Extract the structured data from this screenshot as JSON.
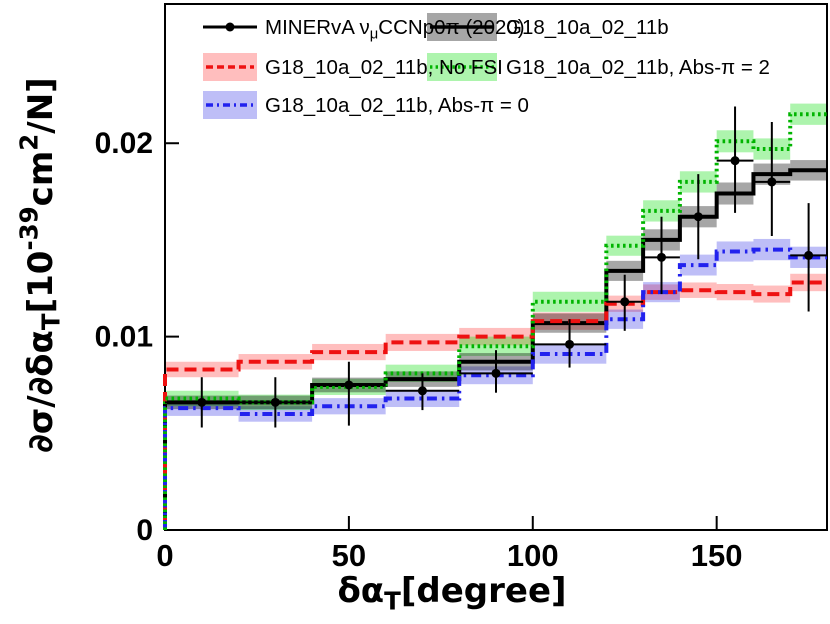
{
  "chart_data": {
    "type": "step-histogram-with-errorbars",
    "title": "",
    "xlabel_parts": [
      {
        "t": "δα"
      },
      {
        "t": "T",
        "sub": true
      },
      {
        "t": "[degree]"
      }
    ],
    "ylabel_parts": [
      {
        "t": "∂σ/∂δα"
      },
      {
        "t": "T",
        "sub": true
      },
      {
        "t": "[10"
      },
      {
        "t": "-39",
        "sup": true
      },
      {
        "t": "cm"
      },
      {
        "t": "2",
        "sup": true
      },
      {
        "t": "/N]"
      }
    ],
    "xlim": [
      0,
      180
    ],
    "ylim": [
      0,
      0.0272
    ],
    "x_ticks": [
      {
        "value": 0,
        "label": "0"
      },
      {
        "value": 50,
        "label": "50"
      },
      {
        "value": 100,
        "label": "100"
      },
      {
        "value": 150,
        "label": "150"
      }
    ],
    "y_ticks": [
      {
        "value": 0,
        "label": "0"
      },
      {
        "value": 0.01,
        "label": "0.01"
      },
      {
        "value": 0.02,
        "label": "0.02"
      }
    ],
    "grid": false,
    "bin_edges": [
      0,
      20,
      40,
      60,
      80,
      100,
      120,
      130,
      140,
      150,
      160,
      170,
      180
    ],
    "series": [
      {
        "key": "g18",
        "name": "G18_10a_02_11b",
        "line_color": "#000000",
        "band_color": "rgba(0,0,0,0.35)",
        "dash": "solid",
        "values": [
          0.0066,
          0.0066,
          0.0075,
          0.0078,
          0.0087,
          0.0107,
          0.0134,
          0.015,
          0.0162,
          0.0174,
          0.0184,
          0.0186
        ],
        "band_halfwidth": [
          0.00035,
          0.00035,
          0.00038,
          0.0004,
          0.00045,
          0.0005,
          0.00052,
          0.00055,
          0.00055,
          0.00057,
          0.00055,
          0.00053
        ]
      },
      {
        "key": "g18_nofsi",
        "name": "G18_10a_02_11b, No FSI",
        "line_color": "#ee1111",
        "band_color": "rgba(255,40,40,0.30)",
        "dash": "dashed",
        "values": [
          0.0083,
          0.0087,
          0.0092,
          0.0097,
          0.01,
          0.0108,
          0.0117,
          0.0123,
          0.0124,
          0.0123,
          0.0122,
          0.0128
        ],
        "band_halfwidth": [
          0.0004,
          0.0004,
          0.00042,
          0.00044,
          0.00045,
          0.00045,
          0.00042,
          0.0004,
          0.0004,
          0.00042,
          0.00044,
          0.00045
        ]
      },
      {
        "key": "g18_abspi2",
        "name": "G18_10a_02_11b, Abs-π = 2",
        "line_color": "#00b400",
        "band_color": "rgba(0,220,0,0.32)",
        "dash": "dotted",
        "values": [
          0.0068,
          0.0066,
          0.0074,
          0.0081,
          0.0095,
          0.0118,
          0.0147,
          0.0165,
          0.018,
          0.0201,
          0.0197,
          0.0215
        ],
        "band_halfwidth": [
          0.0004,
          0.0004,
          0.00042,
          0.00045,
          0.0005,
          0.00052,
          0.00052,
          0.00055,
          0.00055,
          0.00057,
          0.00055,
          0.00055
        ]
      },
      {
        "key": "g18_abspi0",
        "name": "G18_10a_02_11b, Abs-π = 0",
        "line_color": "#2222ee",
        "band_color": "rgba(40,40,230,0.30)",
        "dash": "dashdot",
        "values": [
          0.0063,
          0.006,
          0.0064,
          0.0068,
          0.008,
          0.0091,
          0.0109,
          0.0123,
          0.0137,
          0.0144,
          0.0145,
          0.0141
        ],
        "band_halfwidth": [
          0.0004,
          0.0004,
          0.00042,
          0.00044,
          0.00046,
          0.0005,
          0.0005,
          0.00052,
          0.00054,
          0.00052,
          0.00055,
          0.00055
        ]
      }
    ],
    "data_series": {
      "name_parts": [
        {
          "t": "MINERvA ν"
        },
        {
          "t": "μ",
          "sub": true
        },
        {
          "t": "CCNp0π (2020)"
        }
      ],
      "marker": "filled-circle",
      "marker_color": "#000000",
      "x": [
        10,
        30,
        50,
        70,
        90,
        110,
        125,
        135,
        145,
        155,
        165,
        175
      ],
      "xerr": [
        10,
        10,
        10,
        10,
        10,
        10,
        5,
        5,
        5,
        5,
        5,
        5
      ],
      "y": [
        0.0066,
        0.0066,
        0.0075,
        0.0072,
        0.0081,
        0.0096,
        0.0118,
        0.0141,
        0.0162,
        0.0191,
        0.018,
        0.0142
      ],
      "ylo": [
        0.0053,
        0.0053,
        0.0054,
        0.0062,
        0.0071,
        0.0084,
        0.0103,
        0.0122,
        0.014,
        0.0164,
        0.0152,
        0.0113
      ],
      "yhi": [
        0.0079,
        0.0079,
        0.0087,
        0.0081,
        0.0093,
        0.0109,
        0.0132,
        0.0162,
        0.0184,
        0.0219,
        0.0211,
        0.0169
      ]
    },
    "legend": {
      "position": "top-inside",
      "border": false,
      "entries": [
        {
          "id": "data",
          "col": 0,
          "row": 0,
          "marker": "line-dot"
        },
        {
          "id": "g18",
          "col": 1,
          "row": 0,
          "marker": "band"
        },
        {
          "id": "g18_nofsi",
          "col": 0,
          "row": 1,
          "marker": "band"
        },
        {
          "id": "g18_abspi2",
          "col": 1,
          "row": 1,
          "marker": "band"
        },
        {
          "id": "g18_abspi0",
          "col": 0,
          "row": 2,
          "marker": "band"
        }
      ]
    }
  }
}
